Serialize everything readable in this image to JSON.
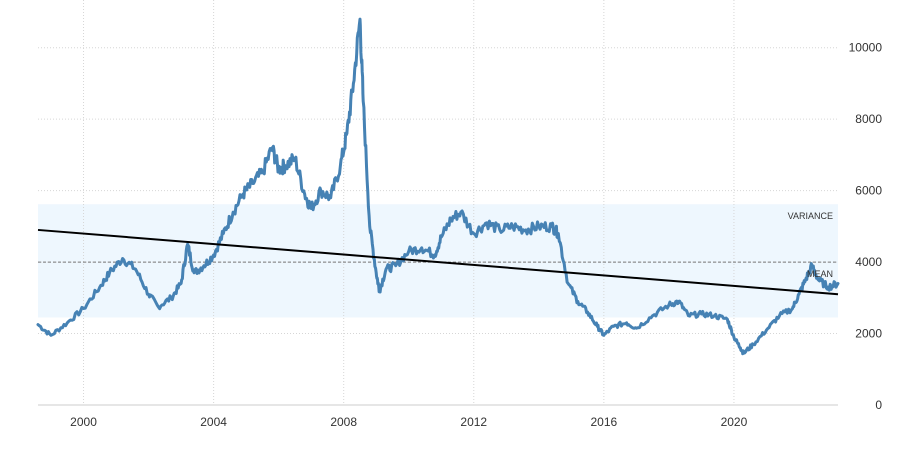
{
  "chart_data": {
    "type": "line",
    "title": "",
    "xlabel": "",
    "ylabel": "",
    "xlim": [
      1998.6,
      2023.2
    ],
    "ylim": [
      0,
      11000
    ],
    "x_ticks": [
      2000,
      2004,
      2008,
      2012,
      2016,
      2020
    ],
    "y_ticks": [
      0,
      2000,
      4000,
      6000,
      8000,
      10000
    ],
    "grid": true,
    "y_axis_side": "right",
    "series": [
      {
        "color": "#4682b4",
        "x": [
          1998.6,
          1999.0,
          1999.5,
          2000.0,
          2000.5,
          2000.8,
          2001.2,
          2001.6,
          2002.0,
          2002.3,
          2002.7,
          2003.0,
          2003.2,
          2003.4,
          2003.7,
          2004.0,
          2004.3,
          2004.6,
          2004.9,
          2005.2,
          2005.5,
          2005.8,
          2006.0,
          2006.2,
          2006.5,
          2006.8,
          2007.0,
          2007.3,
          2007.6,
          2007.9,
          2008.1,
          2008.3,
          2008.5,
          2008.6,
          2008.8,
          2009.0,
          2009.1,
          2009.3,
          2009.6,
          2010.0,
          2010.4,
          2010.8,
          2011.0,
          2011.3,
          2011.6,
          2012.0,
          2012.4,
          2012.8,
          2013.2,
          2013.6,
          2014.0,
          2014.4,
          2014.6,
          2014.9,
          2015.2,
          2015.5,
          2015.8,
          2016.0,
          2016.3,
          2016.7,
          2017.0,
          2017.5,
          2018.0,
          2018.3,
          2018.6,
          2019.0,
          2019.4,
          2019.8,
          2020.0,
          2020.2,
          2020.3,
          2020.6,
          2021.0,
          2021.4,
          2021.8,
          2022.0,
          2022.2,
          2022.4,
          2022.6,
          2022.9,
          2023.2
        ],
        "y": [
          2250,
          1950,
          2300,
          2700,
          3300,
          3700,
          4100,
          3800,
          3100,
          2750,
          3000,
          3400,
          4500,
          3700,
          3900,
          4200,
          4800,
          5400,
          5900,
          6200,
          6500,
          7200,
          6600,
          6700,
          6900,
          5900,
          5500,
          6000,
          5800,
          6700,
          7600,
          9000,
          10800,
          8500,
          5000,
          3700,
          3200,
          3800,
          3900,
          4300,
          4400,
          4200,
          4700,
          5200,
          5400,
          4800,
          5100,
          4900,
          5000,
          4900,
          5000,
          5000,
          4800,
          3400,
          2900,
          2600,
          2200,
          1950,
          2200,
          2300,
          2150,
          2500,
          2800,
          2900,
          2500,
          2550,
          2500,
          2400,
          1900,
          1600,
          1450,
          1700,
          2100,
          2500,
          2700,
          3100,
          3500,
          3900,
          3500,
          3300,
          3400
        ]
      }
    ],
    "trend_line": {
      "x": [
        1998.6,
        2023.2
      ],
      "y": [
        4900,
        3100
      ]
    },
    "mean_line": {
      "y": 4000
    },
    "variance_band": {
      "y0": 2450,
      "y1": 5620
    },
    "annotations": [
      "VARIANCE",
      "MEAN"
    ],
    "colors": {
      "line": "#4682b4",
      "trend": "#000000",
      "band": "#eef7fe",
      "mean": "#666666",
      "grid": "#d6d6d6"
    }
  }
}
